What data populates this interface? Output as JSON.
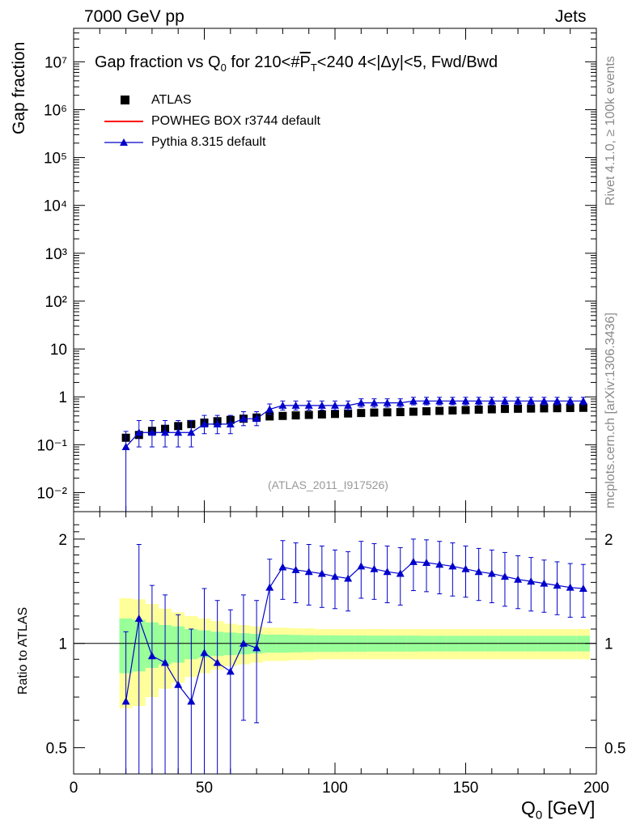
{
  "header": {
    "left": "7000 GeV pp",
    "right": "Jets"
  },
  "side_labels": {
    "rivet": "Rivet 4.1.0, ≥ 100k events",
    "mcplots": "mcplots.cern.ch [arXiv:1306.3436]"
  },
  "analysis_id": "(ATLAS_2011_I917526)",
  "colors": {
    "atlas": "#000000",
    "powheg": "#ff0000",
    "pythia": "#0000cc",
    "band_outer": "#ffff99",
    "band_inner": "#99ff99"
  },
  "legend": [
    {
      "label": "ATLAS",
      "marker": "square"
    },
    {
      "label": "POWHEG BOX r3744 default",
      "marker": "line"
    },
    {
      "label": "Pythia 8.315 default",
      "marker": "triangle"
    }
  ],
  "chart_data": [
    {
      "type": "scatter",
      "panel": "main",
      "title": "Gap fraction vs Q₀ for 210<#P̅ₜ<240  4<|Δy|<5, Fwd/Bwd",
      "title_parts": {
        "a": "Gap fraction vs Q",
        "sub": "0",
        "b": " for 210<#",
        "p": "P",
        "pt": "T",
        "c": "<240  4<|Δy|<5, Fwd/Bwd"
      },
      "ylabel": "Gap fraction",
      "yscale": "log",
      "ylim": [
        0.004,
        50000000
      ],
      "xlim": [
        0,
        200
      ],
      "ytick_labels": [
        "10⁻²",
        "10⁻¹",
        "1",
        "10",
        "10²",
        "10³",
        "10⁴",
        "10⁵",
        "10⁶",
        "10⁷"
      ],
      "ytick_values": [
        0.01,
        0.1,
        1,
        10,
        100,
        1000,
        10000,
        100000,
        1000000,
        10000000
      ],
      "x": [
        20,
        25,
        30,
        35,
        40,
        45,
        50,
        55,
        60,
        65,
        70,
        75,
        80,
        85,
        90,
        95,
        100,
        105,
        110,
        115,
        120,
        125,
        130,
        135,
        140,
        145,
        150,
        155,
        160,
        165,
        170,
        175,
        180,
        185,
        190,
        195
      ],
      "series": [
        {
          "name": "ATLAS",
          "values": [
            0.14,
            0.16,
            0.195,
            0.215,
            0.245,
            0.27,
            0.29,
            0.31,
            0.33,
            0.35,
            0.37,
            0.39,
            0.4,
            0.41,
            0.42,
            0.43,
            0.44,
            0.45,
            0.46,
            0.47,
            0.475,
            0.48,
            0.49,
            0.5,
            0.51,
            0.52,
            0.53,
            0.54,
            0.55,
            0.56,
            0.565,
            0.57,
            0.575,
            0.58,
            0.585,
            0.59
          ],
          "err": [
            0.02,
            0.02,
            0.02,
            0.02,
            0.02,
            0.02,
            0.02,
            0.02,
            0.02,
            0.02,
            0.02,
            0.02,
            0.02,
            0.02,
            0.02,
            0.02,
            0.02,
            0.02,
            0.02,
            0.02,
            0.02,
            0.02,
            0.02,
            0.02,
            0.02,
            0.02,
            0.02,
            0.02,
            0.02,
            0.02,
            0.02,
            0.02,
            0.02,
            0.02,
            0.02,
            0.02
          ]
        },
        {
          "name": "Pythia 8.315 default",
          "values": [
            0.09,
            0.18,
            0.18,
            0.18,
            0.18,
            0.18,
            0.27,
            0.27,
            0.27,
            0.35,
            0.35,
            0.55,
            0.66,
            0.66,
            0.66,
            0.66,
            0.66,
            0.66,
            0.75,
            0.75,
            0.75,
            0.75,
            0.82,
            0.82,
            0.82,
            0.82,
            0.82,
            0.82,
            0.82,
            0.82,
            0.82,
            0.82,
            0.82,
            0.82,
            0.82,
            0.82
          ],
          "err_lo": [
            0.086,
            0.09,
            0.09,
            0.09,
            0.09,
            0.09,
            0.1,
            0.1,
            0.1,
            0.1,
            0.1,
            0.12,
            0.13,
            0.13,
            0.13,
            0.13,
            0.13,
            0.13,
            0.14,
            0.14,
            0.14,
            0.14,
            0.14,
            0.14,
            0.14,
            0.14,
            0.14,
            0.14,
            0.14,
            0.14,
            0.14,
            0.14,
            0.14,
            0.14,
            0.14,
            0.14
          ],
          "err_hi": [
            0.1,
            0.14,
            0.14,
            0.14,
            0.14,
            0.14,
            0.14,
            0.14,
            0.14,
            0.14,
            0.14,
            0.16,
            0.16,
            0.16,
            0.16,
            0.16,
            0.16,
            0.16,
            0.16,
            0.16,
            0.16,
            0.16,
            0.16,
            0.16,
            0.16,
            0.16,
            0.16,
            0.16,
            0.16,
            0.16,
            0.16,
            0.16,
            0.16,
            0.16,
            0.16,
            0.16
          ]
        }
      ]
    },
    {
      "type": "scatter",
      "panel": "ratio",
      "ylabel": "Ratio to ATLAS",
      "xlabel": "Q₀ [GeV]",
      "xlabel_parts": {
        "a": "Q",
        "sub": "0",
        "b": " [GeV]"
      },
      "yscale": "log",
      "ylim": [
        0.42,
        2.4
      ],
      "xlim": [
        0,
        200
      ],
      "xtick_values": [
        0,
        50,
        100,
        150,
        200
      ],
      "xtick_labels": [
        "0",
        "50",
        "100",
        "150",
        "200"
      ],
      "ytick_values": [
        0.5,
        1,
        2
      ],
      "ytick_labels": [
        "0.5",
        "1",
        "2"
      ],
      "x": [
        20,
        25,
        30,
        35,
        40,
        45,
        50,
        55,
        60,
        65,
        70,
        75,
        80,
        85,
        90,
        95,
        100,
        105,
        110,
        115,
        120,
        125,
        130,
        135,
        140,
        145,
        150,
        155,
        160,
        165,
        170,
        175,
        180,
        185,
        190,
        195
      ],
      "band_outer": [
        0.35,
        0.34,
        0.3,
        0.26,
        0.23,
        0.2,
        0.18,
        0.16,
        0.14,
        0.13,
        0.12,
        0.11,
        0.11,
        0.105,
        0.105,
        0.1,
        0.1,
        0.1,
        0.1,
        0.1,
        0.1,
        0.1,
        0.1,
        0.1,
        0.1,
        0.1,
        0.1,
        0.1,
        0.1,
        0.1,
        0.1,
        0.1,
        0.1,
        0.1,
        0.1,
        0.1
      ],
      "band_inner": [
        0.18,
        0.17,
        0.15,
        0.13,
        0.12,
        0.1,
        0.09,
        0.08,
        0.075,
        0.07,
        0.065,
        0.06,
        0.06,
        0.058,
        0.056,
        0.055,
        0.055,
        0.054,
        0.054,
        0.053,
        0.053,
        0.053,
        0.053,
        0.052,
        0.052,
        0.052,
        0.052,
        0.052,
        0.052,
        0.052,
        0.052,
        0.052,
        0.052,
        0.052,
        0.052,
        0.052
      ],
      "series": [
        {
          "name": "Pythia 8.315 default",
          "values": [
            0.68,
            1.18,
            0.92,
            0.88,
            0.76,
            0.68,
            0.94,
            0.88,
            0.83,
            1.0,
            0.97,
            1.45,
            1.66,
            1.63,
            1.61,
            1.59,
            1.56,
            1.54,
            1.67,
            1.64,
            1.61,
            1.59,
            1.72,
            1.71,
            1.69,
            1.67,
            1.64,
            1.61,
            1.59,
            1.56,
            1.53,
            1.51,
            1.49,
            1.47,
            1.45,
            1.44
          ],
          "err_lo": [
            0.4,
            0.8,
            0.55,
            0.55,
            0.5,
            0.45,
            0.55,
            0.5,
            0.45,
            0.4,
            0.38,
            0.3,
            0.32,
            0.32,
            0.32,
            0.32,
            0.3,
            0.3,
            0.32,
            0.3,
            0.3,
            0.3,
            0.3,
            0.3,
            0.3,
            0.3,
            0.28,
            0.28,
            0.28,
            0.28,
            0.27,
            0.27,
            0.26,
            0.26,
            0.26,
            0.25
          ],
          "err_hi": [
            0.4,
            0.75,
            0.55,
            0.5,
            0.45,
            0.42,
            0.5,
            0.45,
            0.42,
            0.38,
            0.36,
            0.3,
            0.32,
            0.32,
            0.32,
            0.32,
            0.3,
            0.3,
            0.3,
            0.3,
            0.3,
            0.3,
            0.28,
            0.28,
            0.28,
            0.28,
            0.27,
            0.27,
            0.27,
            0.27,
            0.26,
            0.26,
            0.25,
            0.25,
            0.25,
            0.25
          ]
        }
      ]
    }
  ]
}
